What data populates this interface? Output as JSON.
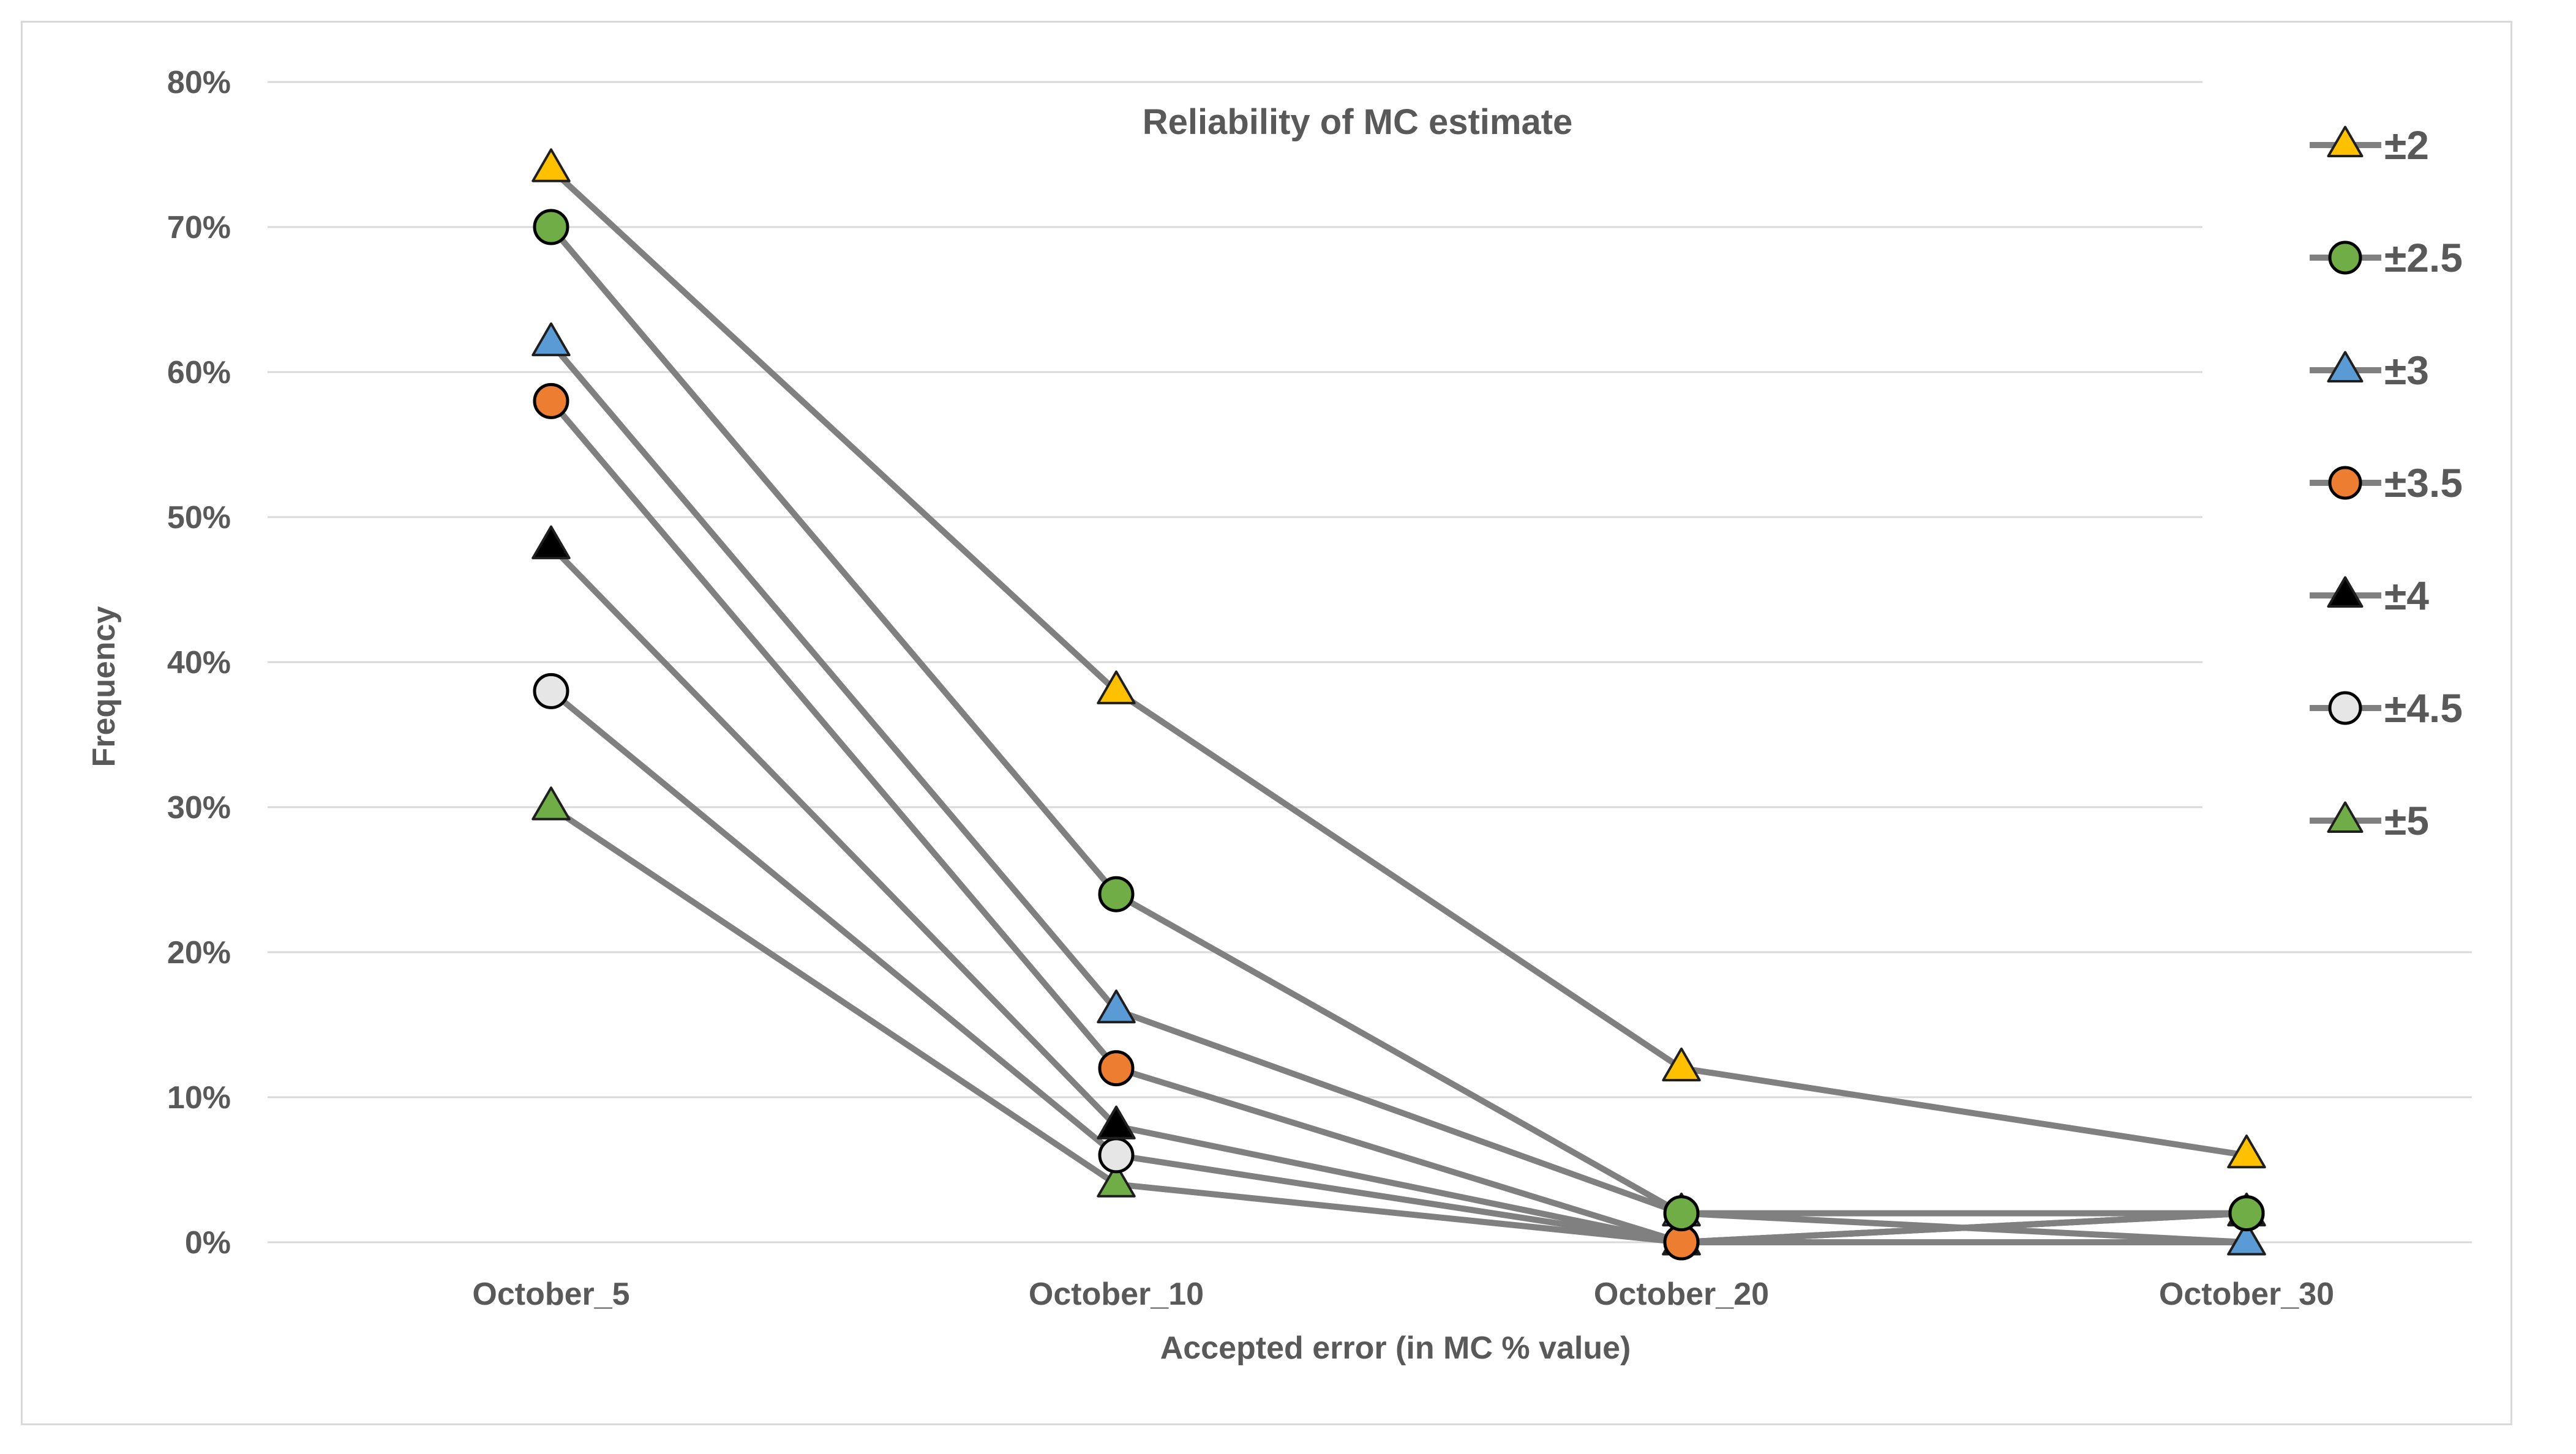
{
  "chart_data": {
    "type": "line",
    "title": "Reliability of MC estimate",
    "xlabel": "Accepted error (in MC % value)",
    "ylabel": "Frequency",
    "categories": [
      "October_5",
      "October_10",
      "October_20",
      "October_30"
    ],
    "ylim": [
      0,
      0.8
    ],
    "yticks": [
      0,
      0.1,
      0.2,
      0.3,
      0.4,
      0.5,
      0.6,
      0.7,
      0.8
    ],
    "ytick_labels": [
      "0%",
      "10%",
      "20%",
      "30%",
      "40%",
      "50%",
      "60%",
      "70%",
      "80%"
    ],
    "grid": true,
    "legend_position": "right",
    "line_color": "#808080",
    "series": [
      {
        "name": "±2",
        "values": [
          0.74,
          0.38,
          0.12,
          0.06
        ],
        "marker": "triangle",
        "color": "#ffc000"
      },
      {
        "name": "±2.5",
        "values": [
          0.7,
          0.24,
          0.02,
          0.02
        ],
        "marker": "circle",
        "color": "#70ad47"
      },
      {
        "name": "±3",
        "values": [
          0.62,
          0.16,
          0.02,
          0.0
        ],
        "marker": "triangle",
        "color": "#5b9bd5"
      },
      {
        "name": "±3.5",
        "values": [
          0.58,
          0.12,
          0.0,
          0.02
        ],
        "marker": "circle",
        "color": "#ed7d31"
      },
      {
        "name": "±4",
        "values": [
          0.48,
          0.08,
          0.0,
          0.02
        ],
        "marker": "triangle",
        "color": "#000000"
      },
      {
        "name": "±4.5",
        "values": [
          0.38,
          0.06,
          0.0,
          0.02
        ],
        "marker": "circle",
        "color": "#e7e6e6"
      },
      {
        "name": "±5",
        "values": [
          0.3,
          0.04,
          0.0,
          0.0
        ],
        "marker": "triangle",
        "color": "#70ad47"
      }
    ]
  }
}
